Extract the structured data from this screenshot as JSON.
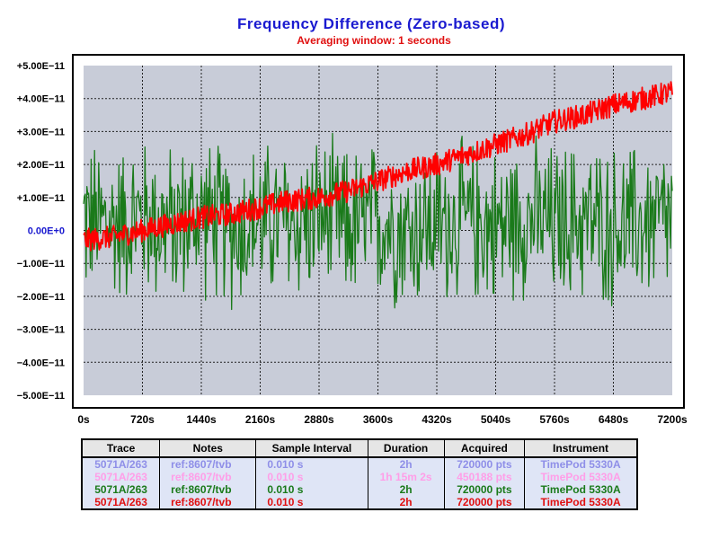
{
  "chart_data": {
    "type": "line",
    "title": "Frequency  Difference  (Zero-based)",
    "subtitle": "Averaging window: 1 seconds",
    "xlabel": "",
    "ylabel": "",
    "xlim": [
      0,
      7200
    ],
    "ylim": [
      -5e-11,
      5e-11
    ],
    "x_ticks": [
      0,
      720,
      1440,
      2160,
      2880,
      3600,
      4320,
      5040,
      5760,
      6480,
      7200
    ],
    "x_tick_labels": [
      "0s",
      "720s",
      "1440s",
      "2160s",
      "2880s",
      "3600s",
      "4320s",
      "5040s",
      "5760s",
      "6480s",
      "7200s"
    ],
    "y_ticks": [
      5e-11,
      4e-11,
      3e-11,
      2e-11,
      1e-11,
      0,
      -1e-11,
      -2e-11,
      -3e-11,
      -4e-11,
      -5e-11
    ],
    "y_tick_labels": [
      "+5.00E−11",
      "+4.00E−11",
      "+3.00E−11",
      "+2.00E−11",
      "+1.00E−11",
      "0.00E+0",
      "−1.00E−11",
      "−2.00E−11",
      "−3.00E−11",
      "−4.00E−11",
      "−5.00E−11"
    ],
    "grid": true,
    "series": [
      {
        "name": "",
        "color": "#1a7a1a",
        "x": [
          0,
          360,
          720,
          1080,
          1440,
          1800,
          2160,
          2520,
          2880,
          3240,
          3600,
          3960,
          4320,
          4680,
          5040,
          5400,
          5760,
          6120,
          6480,
          6840,
          7200
        ],
        "y": [
          3e-12,
          2e-12,
          4e-12,
          1e-12,
          5e-12,
          0.0,
          3e-12,
          2e-12,
          4e-12,
          1e-12,
          3e-12,
          0.0,
          2e-12,
          3e-12,
          1e-12,
          4e-12,
          2e-12,
          3e-12,
          1e-12,
          2e-12,
          3e-12
        ],
        "noise_amplitude": 2.8e-11
      },
      {
        "name": "",
        "color": "#ff0000",
        "x": [
          0,
          360,
          720,
          1080,
          1440,
          1800,
          2160,
          2520,
          2880,
          3240,
          3600,
          3960,
          4320,
          4680,
          5040,
          5400,
          5760,
          6120,
          6480,
          6840,
          7200
        ],
        "y": [
          -3e-12,
          -2e-12,
          0.0,
          2e-12,
          4e-12,
          5e-12,
          7e-12,
          9e-12,
          1e-11,
          1.2e-11,
          1.5e-11,
          1.8e-11,
          2e-11,
          2.3e-11,
          2.6e-11,
          2.9e-11,
          3.3e-11,
          3.5e-11,
          3.8e-11,
          4e-11,
          4.2e-11
        ],
        "noise_amplitude": 3.5e-12
      }
    ]
  },
  "legend_table": {
    "headers": {
      "trace": "Trace",
      "notes": "Notes",
      "sample_interval": "Sample Interval",
      "duration": "Duration",
      "acquired": "Acquired",
      "instrument": "Instrument"
    },
    "rows": [
      {
        "trace": "5071A/263",
        "notes": "ref:8607/tvb",
        "sample_interval": "0.010 s",
        "duration": "2h",
        "acquired": "720000 pts",
        "instrument": "TimePod 5330A",
        "color": "#8f8fe8"
      },
      {
        "trace": "5071A/263",
        "notes": "ref:8607/tvb",
        "sample_interval": "0.010 s",
        "duration": "1h 15m 2s",
        "acquired": "450188 pts",
        "instrument": "TimePod 5330A",
        "color": "#ff9ee8"
      },
      {
        "trace": "5071A/263",
        "notes": "ref:8607/tvb",
        "sample_interval": "0.010 s",
        "duration": "2h",
        "acquired": "720000 pts",
        "instrument": "TimePod 5330A",
        "color": "#1a7a1a"
      },
      {
        "trace": "5071A/263",
        "notes": "ref:8607/tvb",
        "sample_interval": "0.010 s",
        "duration": "2h",
        "acquired": "720000 pts",
        "instrument": "TimePod 5330A",
        "color": "#e01010"
      }
    ]
  }
}
